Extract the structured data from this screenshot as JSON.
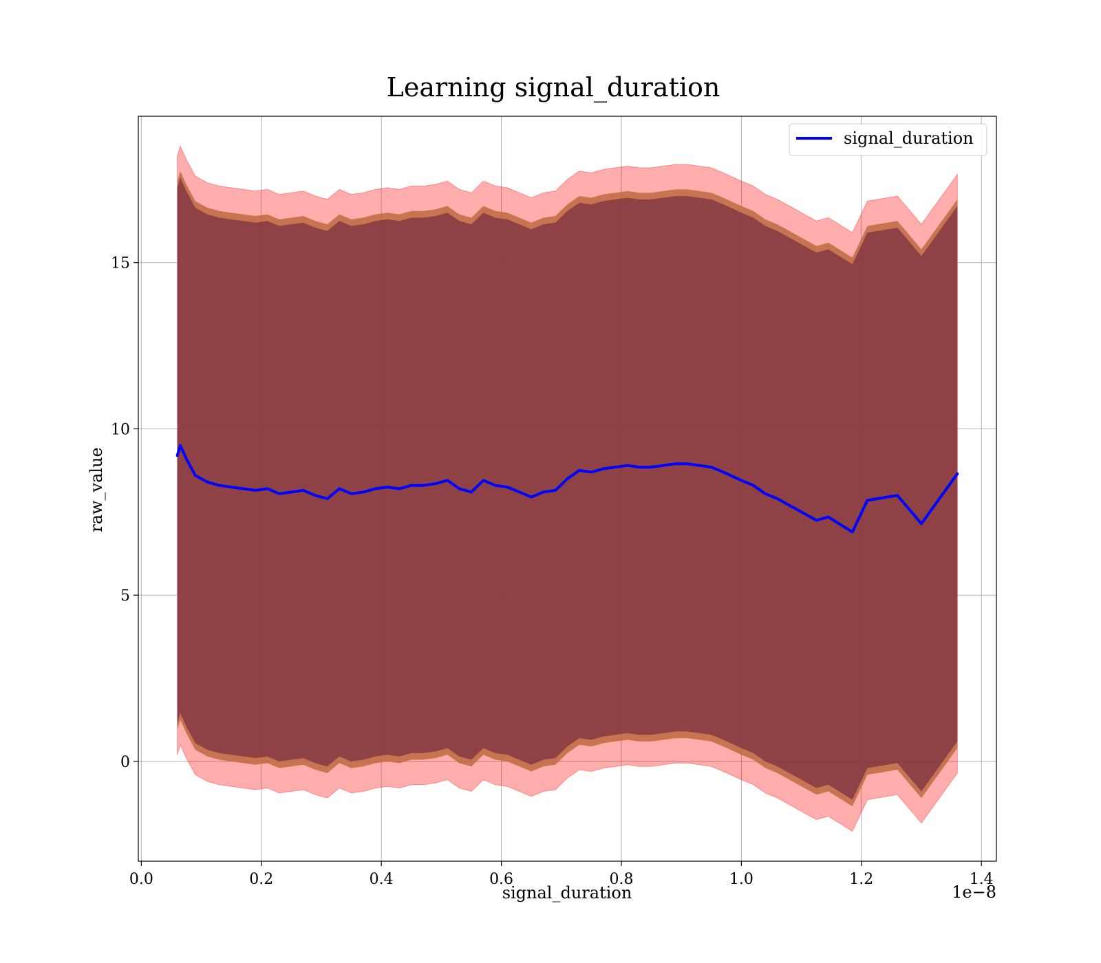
{
  "chart_data": {
    "type": "line",
    "title": "Learning signal_duration",
    "xlabel": "signal_duration",
    "ylabel": "raw_value",
    "x_offset_text": "1e−8",
    "xlim": [
      -0.005,
      1.425
    ],
    "ylim": [
      -3.0,
      19.4
    ],
    "grid": true,
    "legend_position": "top-right",
    "x_ticks": [
      0.0,
      0.2,
      0.4,
      0.6,
      0.8,
      1.0,
      1.2,
      1.4
    ],
    "x_tick_labels": [
      "0.0",
      "0.2",
      "0.4",
      "0.6",
      "0.8",
      "1.0",
      "1.2",
      "1.4"
    ],
    "y_ticks": [
      0,
      5,
      10,
      15
    ],
    "y_tick_labels": [
      "0",
      "5",
      "10",
      "15"
    ],
    "colors": {
      "line": "#0000ff",
      "outer_band": "#ff0000",
      "middle_band": "#c06a40",
      "inner_band": "#6b2440",
      "grid": "#b0b0b0"
    },
    "series": [
      {
        "name": "signal_duration",
        "x": [
          0.06,
          0.065,
          0.075,
          0.09,
          0.11,
          0.13,
          0.15,
          0.17,
          0.19,
          0.21,
          0.23,
          0.25,
          0.27,
          0.29,
          0.31,
          0.33,
          0.35,
          0.37,
          0.39,
          0.41,
          0.43,
          0.45,
          0.47,
          0.49,
          0.51,
          0.53,
          0.55,
          0.57,
          0.59,
          0.61,
          0.63,
          0.65,
          0.67,
          0.69,
          0.71,
          0.73,
          0.75,
          0.77,
          0.79,
          0.81,
          0.83,
          0.85,
          0.87,
          0.89,
          0.91,
          0.93,
          0.95,
          0.97,
          1.0,
          1.02,
          1.04,
          1.06,
          1.08,
          1.1,
          1.125,
          1.145,
          1.185,
          1.21,
          1.26,
          1.3,
          1.36
        ],
        "values": [
          9.2,
          9.5,
          9.1,
          8.6,
          8.4,
          8.3,
          8.25,
          8.2,
          8.15,
          8.2,
          8.05,
          8.1,
          8.15,
          8.0,
          7.9,
          8.2,
          8.05,
          8.1,
          8.2,
          8.25,
          8.2,
          8.3,
          8.3,
          8.35,
          8.45,
          8.2,
          8.1,
          8.45,
          8.3,
          8.25,
          8.1,
          7.95,
          8.1,
          8.15,
          8.5,
          8.75,
          8.7,
          8.8,
          8.85,
          8.9,
          8.85,
          8.85,
          8.9,
          8.95,
          8.95,
          8.9,
          8.85,
          8.7,
          8.45,
          8.3,
          8.05,
          7.9,
          7.7,
          7.5,
          7.25,
          7.35,
          6.9,
          7.85,
          8.0,
          7.15,
          8.65
        ],
        "band_half_widths": {
          "outer": 9.0,
          "middle": 8.25,
          "inner": 8.05
        }
      }
    ]
  },
  "legend": {
    "entries": [
      "signal_duration"
    ]
  }
}
